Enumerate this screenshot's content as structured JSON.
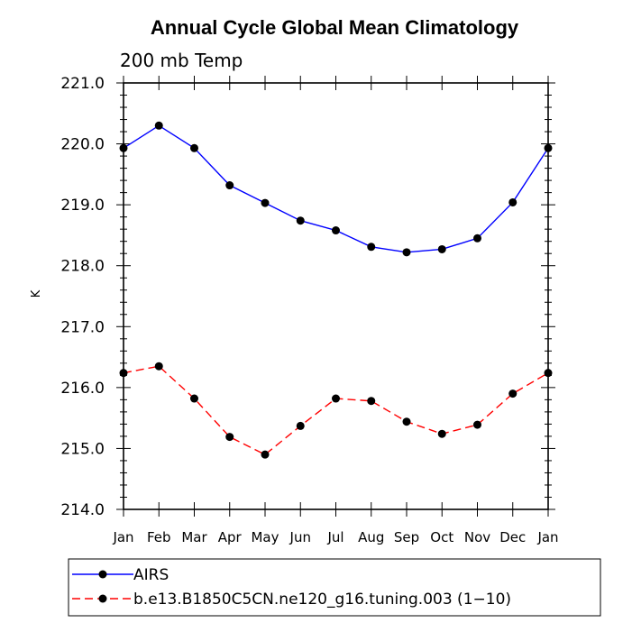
{
  "chart_data": {
    "type": "line",
    "title": "Annual Cycle Global Mean Climatology",
    "subtitle": "200 mb Temp",
    "xlabel": "",
    "ylabel": "K",
    "categories": [
      "Jan",
      "Feb",
      "Mar",
      "Apr",
      "May",
      "Jun",
      "Jul",
      "Aug",
      "Sep",
      "Oct",
      "Nov",
      "Dec",
      "Jan"
    ],
    "ylim": [
      214.0,
      221.0
    ],
    "yticks": [
      "214.0",
      "215.0",
      "216.0",
      "217.0",
      "218.0",
      "219.0",
      "220.0",
      "221.0"
    ],
    "grid": false,
    "legend_position": "bottom-left",
    "series": [
      {
        "name": "AIRS",
        "color": "#0000ff",
        "dashed": false,
        "values": [
          219.93,
          220.3,
          219.93,
          219.32,
          219.03,
          218.74,
          218.58,
          218.31,
          218.22,
          218.27,
          218.45,
          219.04,
          219.93
        ]
      },
      {
        "name": "b.e13.B1850C5CN.ne120_g16.tuning.003 (1−10)",
        "color": "#ff0000",
        "dashed": true,
        "values": [
          216.24,
          216.35,
          215.82,
          215.19,
          214.9,
          215.37,
          215.82,
          215.78,
          215.44,
          215.24,
          215.39,
          215.9,
          216.24
        ]
      }
    ]
  }
}
